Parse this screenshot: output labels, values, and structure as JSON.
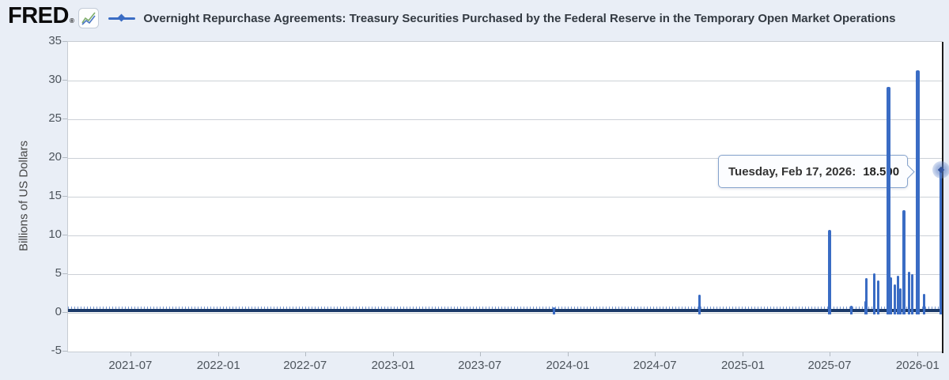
{
  "header": {
    "logo_text": "FRED",
    "registered_mark": "®",
    "series_title": "Overnight Repurchase Agreements: Treasury Securities Purchased by the Federal Reserve in the Temporary Open Market Operations"
  },
  "tooltip": {
    "label": "Tuesday, Feb 17, 2026:",
    "value": "18.500"
  },
  "colors": {
    "background": "#e9eef6",
    "plot_background": "#ffffff",
    "gridline": "#ccd1d7",
    "series_blue": "#3a6cc4",
    "baseline_navy": "#1b3a69",
    "crosshair_black": "#1c1c1c",
    "tooltip_border": "#85a3cc"
  },
  "chart_data": {
    "type": "line",
    "title": "Overnight Repurchase Agreements: Treasury Securities Purchased by the Federal Reserve in the Temporary Open Market Operations",
    "ylabel": "Billions of US Dollars",
    "xlabel": "",
    "ylim": [
      -5,
      35
    ],
    "grid": true,
    "legend_position": "top",
    "y_ticks": [
      35,
      30,
      25,
      20,
      15,
      10,
      5,
      0,
      -5
    ],
    "x_domain": [
      "2021-02-19",
      "2026-02-19"
    ],
    "x_ticks": [
      {
        "date": "2021-07-01",
        "label": "2021-07"
      },
      {
        "date": "2022-01-01",
        "label": "2022-01"
      },
      {
        "date": "2022-07-01",
        "label": "2022-07"
      },
      {
        "date": "2023-01-01",
        "label": "2023-01"
      },
      {
        "date": "2023-07-01",
        "label": "2023-07"
      },
      {
        "date": "2024-01-01",
        "label": "2024-01"
      },
      {
        "date": "2024-07-01",
        "label": "2024-07"
      },
      {
        "date": "2025-01-01",
        "label": "2025-01"
      },
      {
        "date": "2025-07-01",
        "label": "2025-07"
      },
      {
        "date": "2026-01-01",
        "label": "2026-01"
      }
    ],
    "baseline_note": "series is flat near 0 (small daily operations) from 2021 through late 2023",
    "baseline_value": 0.2,
    "spikes": [
      {
        "date": "2023-12-01",
        "value": 0.75
      },
      {
        "date": "2024-09-30",
        "value": 2.35
      },
      {
        "date": "2025-06-30",
        "value": 10.7
      },
      {
        "date": "2025-08-13",
        "value": 0.9
      },
      {
        "date": "2025-09-12",
        "value": 1.5
      },
      {
        "date": "2025-09-15",
        "value": 4.5
      },
      {
        "date": "2025-09-30",
        "value": 5.1
      },
      {
        "date": "2025-10-09",
        "value": 4.2
      },
      {
        "date": "2025-10-31",
        "value": 29.2
      },
      {
        "date": "2025-11-04",
        "value": 4.6
      },
      {
        "date": "2025-11-13",
        "value": 3.7
      },
      {
        "date": "2025-11-20",
        "value": 4.8
      },
      {
        "date": "2025-11-25",
        "value": 3.2
      },
      {
        "date": "2025-12-01",
        "value": 13.3
      },
      {
        "date": "2025-12-12",
        "value": 5.3
      },
      {
        "date": "2025-12-19",
        "value": 5.0
      },
      {
        "date": "2025-12-31",
        "value": 31.3
      },
      {
        "date": "2026-01-12",
        "value": 2.4
      },
      {
        "date": "2026-02-17",
        "value": 18.5
      }
    ],
    "hover_point": {
      "date": "2026-02-17",
      "value": 18.5,
      "value_label": "18.500"
    }
  }
}
